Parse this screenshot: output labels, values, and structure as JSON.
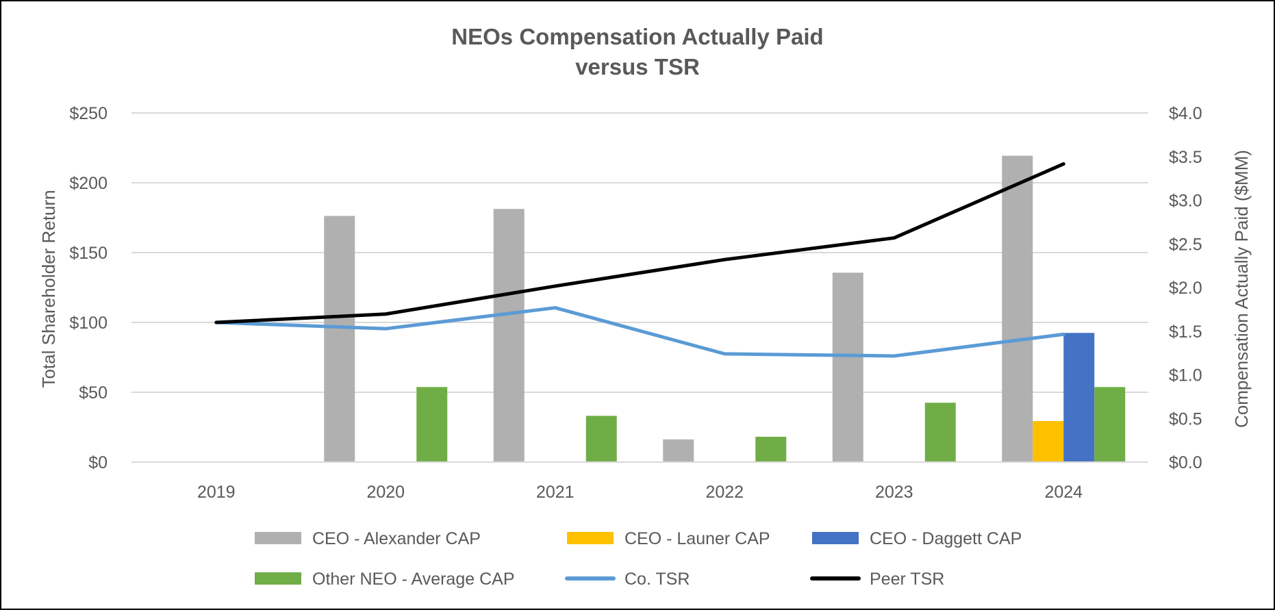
{
  "chart_data": {
    "type": "bar",
    "title_line1": "NEOs Compensation Actually Paid",
    "title_line2": "versus TSR",
    "categories": [
      "2019",
      "2020",
      "2021",
      "2022",
      "2023",
      "2024"
    ],
    "y_left": {
      "label": "Total Shareholder Return",
      "min": 0,
      "max": 250,
      "ticks": [
        0,
        50,
        100,
        150,
        200,
        250
      ],
      "tick_labels": [
        "$0",
        "$50",
        "$100",
        "$150",
        "$200",
        "$250"
      ]
    },
    "y_right": {
      "label": "Compensation Actually Paid ($MM)",
      "min": 0,
      "max": 4.0,
      "ticks": [
        0,
        0.5,
        1.0,
        1.5,
        2.0,
        2.5,
        3.0,
        3.5,
        4.0
      ],
      "tick_labels": [
        "$0.0",
        "$0.5",
        "$1.0",
        "$1.5",
        "$2.0",
        "$2.5",
        "$3.0",
        "$3.5",
        "$4.0"
      ]
    },
    "bar_series": [
      {
        "name": "CEO - Alexander CAP",
        "color": "#b0b0b0",
        "axis": "right",
        "values": [
          null,
          2.82,
          2.9,
          0.26,
          2.17,
          3.51
        ]
      },
      {
        "name": "CEO - Launer CAP",
        "color": "#ffc000",
        "axis": "right",
        "values": [
          null,
          null,
          null,
          null,
          null,
          0.47
        ]
      },
      {
        "name": "CEO - Daggett CAP",
        "color": "#4472c4",
        "axis": "right",
        "values": [
          null,
          null,
          null,
          null,
          null,
          1.48
        ]
      },
      {
        "name": "Other NEO - Average CAP",
        "color": "#70ad47",
        "axis": "right",
        "values": [
          null,
          0.86,
          0.53,
          0.29,
          0.68,
          0.86
        ]
      }
    ],
    "line_series": [
      {
        "name": "Co. TSR",
        "color": "#5b9bd5",
        "axis": "left",
        "values": [
          100,
          95.5,
          110.5,
          77.5,
          76,
          91.5
        ]
      },
      {
        "name": "Peer TSR",
        "color": "#000000",
        "axis": "left",
        "values": [
          100,
          106,
          126,
          145,
          160.5,
          213.5
        ]
      }
    ],
    "legend": [
      {
        "name": "CEO - Alexander CAP",
        "kind": "bar",
        "color": "#b0b0b0"
      },
      {
        "name": "CEO - Launer CAP",
        "kind": "bar",
        "color": "#ffc000"
      },
      {
        "name": "CEO - Daggett CAP",
        "kind": "bar",
        "color": "#4472c4"
      },
      {
        "name": "Other NEO - Average CAP",
        "kind": "bar",
        "color": "#70ad47"
      },
      {
        "name": "Co. TSR",
        "kind": "line",
        "color": "#5b9bd5"
      },
      {
        "name": "Peer TSR",
        "kind": "line",
        "color": "#000000"
      }
    ],
    "legend_position": "bottom",
    "grid": true
  }
}
